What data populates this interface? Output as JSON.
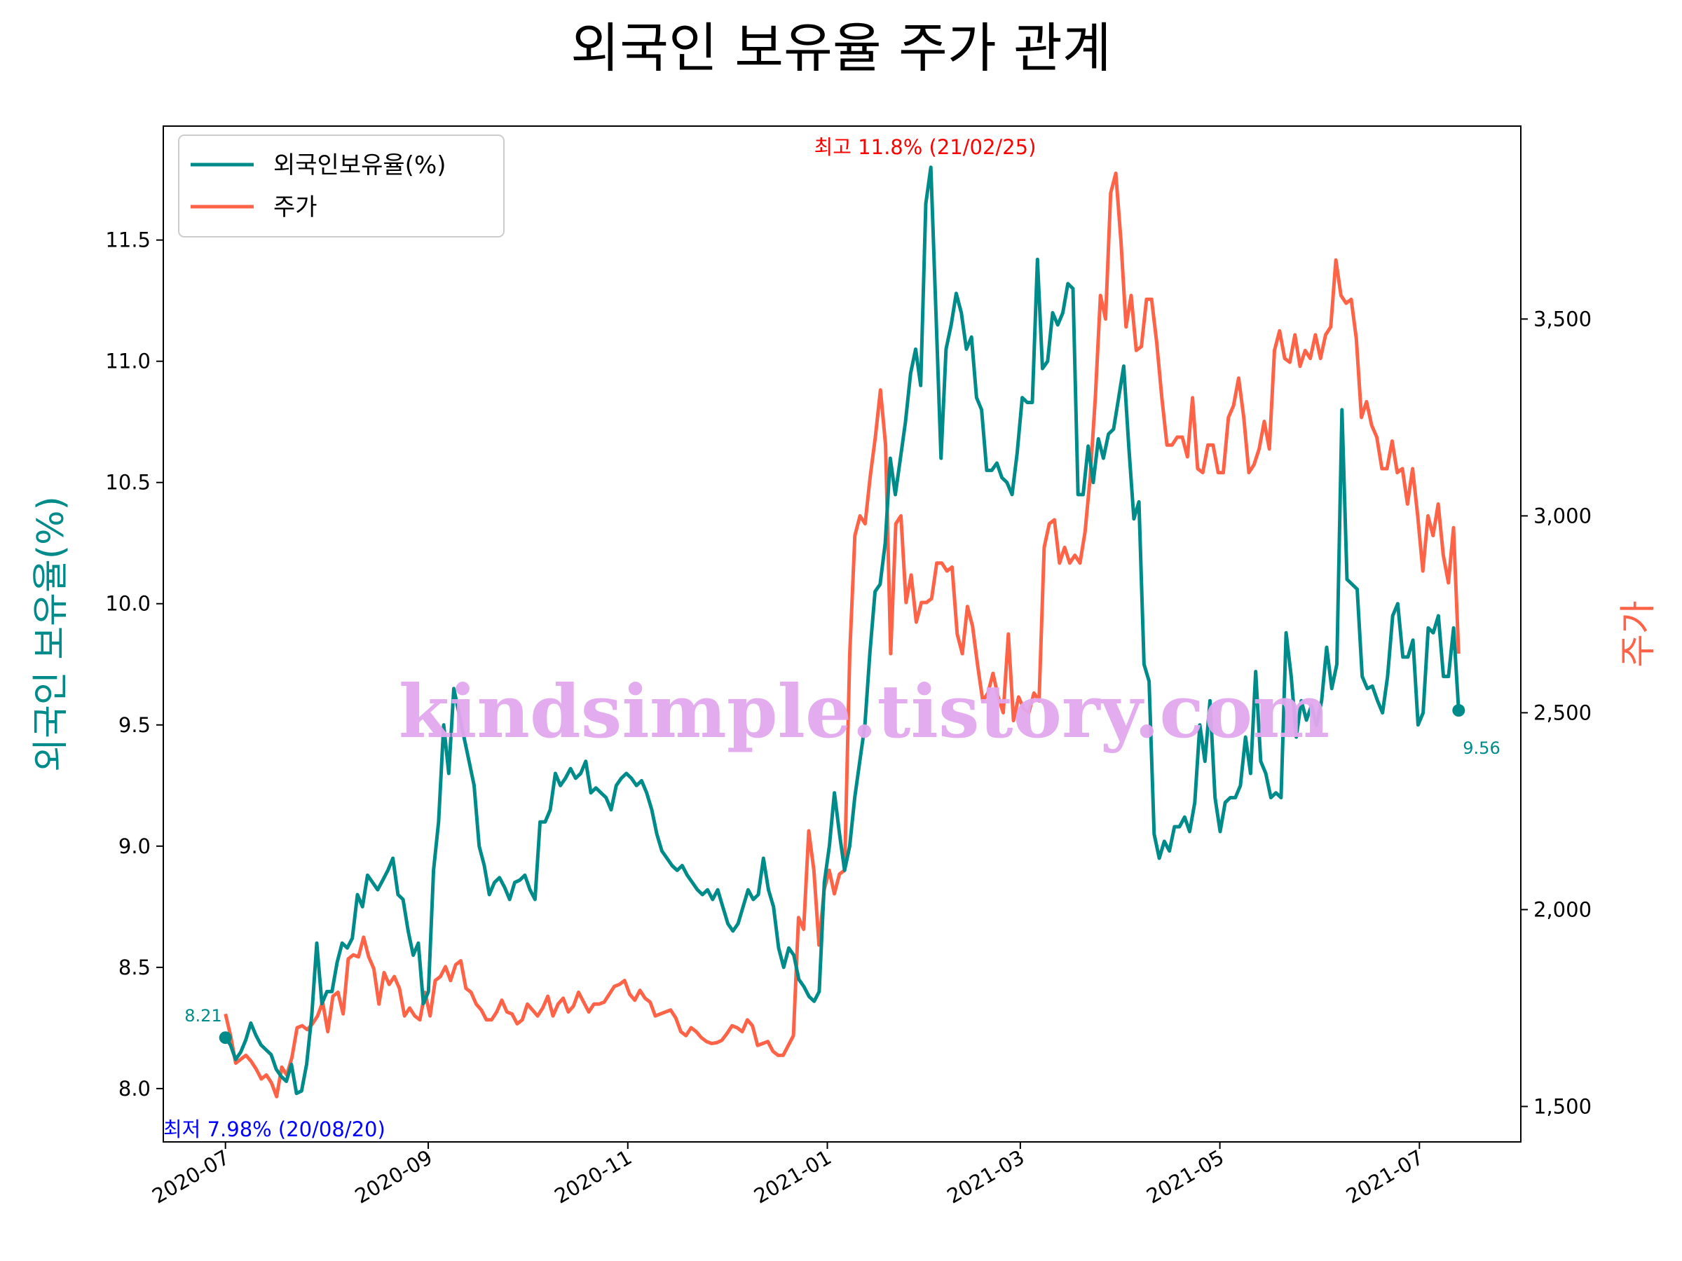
{
  "chart_data": {
    "type": "line",
    "title": "외국인 보유율 주가 관계",
    "x_start": "2020-07-01",
    "x_end": "2021-07-13",
    "xlim": [
      "2020-06-12",
      "2021-08-01"
    ],
    "xticks": [
      "2020-07",
      "2020-09",
      "2020-11",
      "2021-01",
      "2021-03",
      "2021-05",
      "2021-07"
    ],
    "y_left": {
      "label": "외국인 보유율(%)",
      "ylim": [
        7.78,
        11.97
      ],
      "ticks": [
        "8.0",
        "8.5",
        "9.0",
        "9.5",
        "10.0",
        "10.5",
        "11.0",
        "11.5"
      ]
    },
    "y_right": {
      "label": "주가",
      "ylim": [
        1410,
        3990
      ],
      "ticks": [
        "1,500",
        "2,000",
        "2,500",
        "3,000",
        "3,500"
      ]
    },
    "series": [
      {
        "name": "외국인보유율(%)",
        "color": "#008b8b",
        "axis": "left",
        "values": [
          8.21,
          8.18,
          8.12,
          8.15,
          8.2,
          8.27,
          8.22,
          8.18,
          8.16,
          8.14,
          8.08,
          8.05,
          8.03,
          8.1,
          7.98,
          7.99,
          8.1,
          8.3,
          8.6,
          8.35,
          8.4,
          8.4,
          8.52,
          8.6,
          8.58,
          8.62,
          8.8,
          8.75,
          8.88,
          8.85,
          8.82,
          8.86,
          8.9,
          8.95,
          8.8,
          8.78,
          8.65,
          8.55,
          8.6,
          8.35,
          8.4,
          8.9,
          9.1,
          9.5,
          9.3,
          9.65,
          9.55,
          9.45,
          9.35,
          9.25,
          9.0,
          8.92,
          8.8,
          8.85,
          8.87,
          8.83,
          8.78,
          8.85,
          8.86,
          8.88,
          8.82,
          8.78,
          9.1,
          9.1,
          9.15,
          9.3,
          9.25,
          9.28,
          9.32,
          9.28,
          9.3,
          9.35,
          9.22,
          9.24,
          9.22,
          9.2,
          9.15,
          9.25,
          9.28,
          9.3,
          9.28,
          9.25,
          9.27,
          9.22,
          9.15,
          9.05,
          8.98,
          8.95,
          8.92,
          8.9,
          8.92,
          8.88,
          8.85,
          8.82,
          8.8,
          8.82,
          8.78,
          8.82,
          8.75,
          8.68,
          8.65,
          8.68,
          8.75,
          8.82,
          8.78,
          8.8,
          8.95,
          8.82,
          8.75,
          8.58,
          8.5,
          8.58,
          8.55,
          8.45,
          8.42,
          8.38,
          8.36,
          8.4,
          8.85,
          9.0,
          9.22,
          9.05,
          8.9,
          9.0,
          9.2,
          9.35,
          9.5,
          9.8,
          10.05,
          10.08,
          10.25,
          10.6,
          10.45,
          10.6,
          10.75,
          10.95,
          11.05,
          10.9,
          11.65,
          11.8,
          11.2,
          10.6,
          11.05,
          11.15,
          11.28,
          11.2,
          11.05,
          11.1,
          10.85,
          10.8,
          10.55,
          10.55,
          10.58,
          10.52,
          10.5,
          10.45,
          10.62,
          10.85,
          10.83,
          10.83,
          11.42,
          10.97,
          11.0,
          11.2,
          11.15,
          11.2,
          11.32,
          11.3,
          10.45,
          10.45,
          10.65,
          10.5,
          10.68,
          10.6,
          10.7,
          10.72,
          10.85,
          10.98,
          10.65,
          10.35,
          10.42,
          9.75,
          9.68,
          9.05,
          8.95,
          9.02,
          8.98,
          9.08,
          9.08,
          9.12,
          9.06,
          9.18,
          9.5,
          9.35,
          9.6,
          9.2,
          9.06,
          9.18,
          9.2,
          9.2,
          9.25,
          9.45,
          9.3,
          9.72,
          9.35,
          9.3,
          9.2,
          9.22,
          9.2,
          9.88,
          9.7,
          9.45,
          9.6,
          9.52,
          9.58,
          9.5,
          9.6,
          9.82,
          9.65,
          9.75,
          10.8,
          10.1,
          10.08,
          10.06,
          9.7,
          9.65,
          9.66,
          9.6,
          9.55,
          9.7,
          9.95,
          10.0,
          9.78,
          9.78,
          9.85,
          9.5,
          9.55,
          9.9,
          9.88,
          9.95,
          9.7,
          9.7,
          9.9,
          9.56
        ]
      },
      {
        "name": "주가",
        "color": "#ff6347",
        "axis": "right",
        "values": [
          1735,
          1680,
          1610,
          1620,
          1630,
          1615,
          1595,
          1570,
          1580,
          1560,
          1525,
          1600,
          1580,
          1625,
          1700,
          1705,
          1695,
          1710,
          1730,
          1765,
          1690,
          1780,
          1790,
          1735,
          1875,
          1885,
          1880,
          1930,
          1880,
          1850,
          1760,
          1840,
          1810,
          1830,
          1800,
          1730,
          1750,
          1730,
          1720,
          1790,
          1730,
          1820,
          1830,
          1855,
          1820,
          1860,
          1870,
          1800,
          1790,
          1760,
          1745,
          1720,
          1720,
          1740,
          1770,
          1740,
          1735,
          1710,
          1720,
          1760,
          1745,
          1730,
          1750,
          1780,
          1730,
          1760,
          1775,
          1740,
          1755,
          1790,
          1765,
          1740,
          1760,
          1760,
          1765,
          1785,
          1805,
          1810,
          1820,
          1785,
          1770,
          1795,
          1775,
          1765,
          1730,
          1735,
          1740,
          1745,
          1725,
          1690,
          1680,
          1700,
          1690,
          1675,
          1665,
          1660,
          1662,
          1668,
          1685,
          1705,
          1700,
          1690,
          1720,
          1705,
          1655,
          1660,
          1665,
          1640,
          1630,
          1630,
          1655,
          1680,
          1980,
          1950,
          2200,
          2100,
          1910,
          2050,
          2100,
          2040,
          2090,
          2100,
          2650,
          2950,
          3000,
          2980,
          3100,
          3200,
          3320,
          3180,
          2650,
          2980,
          3000,
          2780,
          2850,
          2730,
          2780,
          2780,
          2790,
          2880,
          2880,
          2860,
          2870,
          2700,
          2650,
          2770,
          2720,
          2620,
          2530,
          2550,
          2600,
          2540,
          2500,
          2700,
          2480,
          2540,
          2510,
          2500,
          2550,
          2530,
          2920,
          2980,
          2990,
          2880,
          2920,
          2880,
          2900,
          2880,
          2960,
          3100,
          3300,
          3560,
          3500,
          3820,
          3870,
          3700,
          3480,
          3560,
          3420,
          3430,
          3550,
          3550,
          3440,
          3300,
          3180,
          3180,
          3200,
          3200,
          3150,
          3300,
          3120,
          3110,
          3180,
          3180,
          3110,
          3110,
          3250,
          3280,
          3350,
          3250,
          3110,
          3130,
          3170,
          3240,
          3170,
          3420,
          3470,
          3400,
          3390,
          3460,
          3380,
          3420,
          3400,
          3460,
          3400,
          3460,
          3480,
          3650,
          3560,
          3540,
          3550,
          3450,
          3250,
          3290,
          3230,
          3200,
          3120,
          3120,
          3190,
          3110,
          3120,
          3030,
          3120,
          3000,
          2860,
          3000,
          2950,
          3030,
          2900,
          2830,
          2970,
          2650
        ]
      }
    ],
    "annotations": {
      "max_label": "최고 11.8% (21/02/25)",
      "min_label": "최저 7.98% (20/08/20)",
      "start_value": "8.21",
      "end_value": "9.56"
    },
    "legend": {
      "placement": "upper-left"
    },
    "grid": false
  },
  "colors": {
    "left_axis_label": "#008b8b",
    "right_axis_label": "#ff6347",
    "max_annotation": "#ff0000",
    "min_annotation": "#0000ff",
    "watermark": "#e2a8ef"
  },
  "watermark": "kindsimple.tistory.com"
}
